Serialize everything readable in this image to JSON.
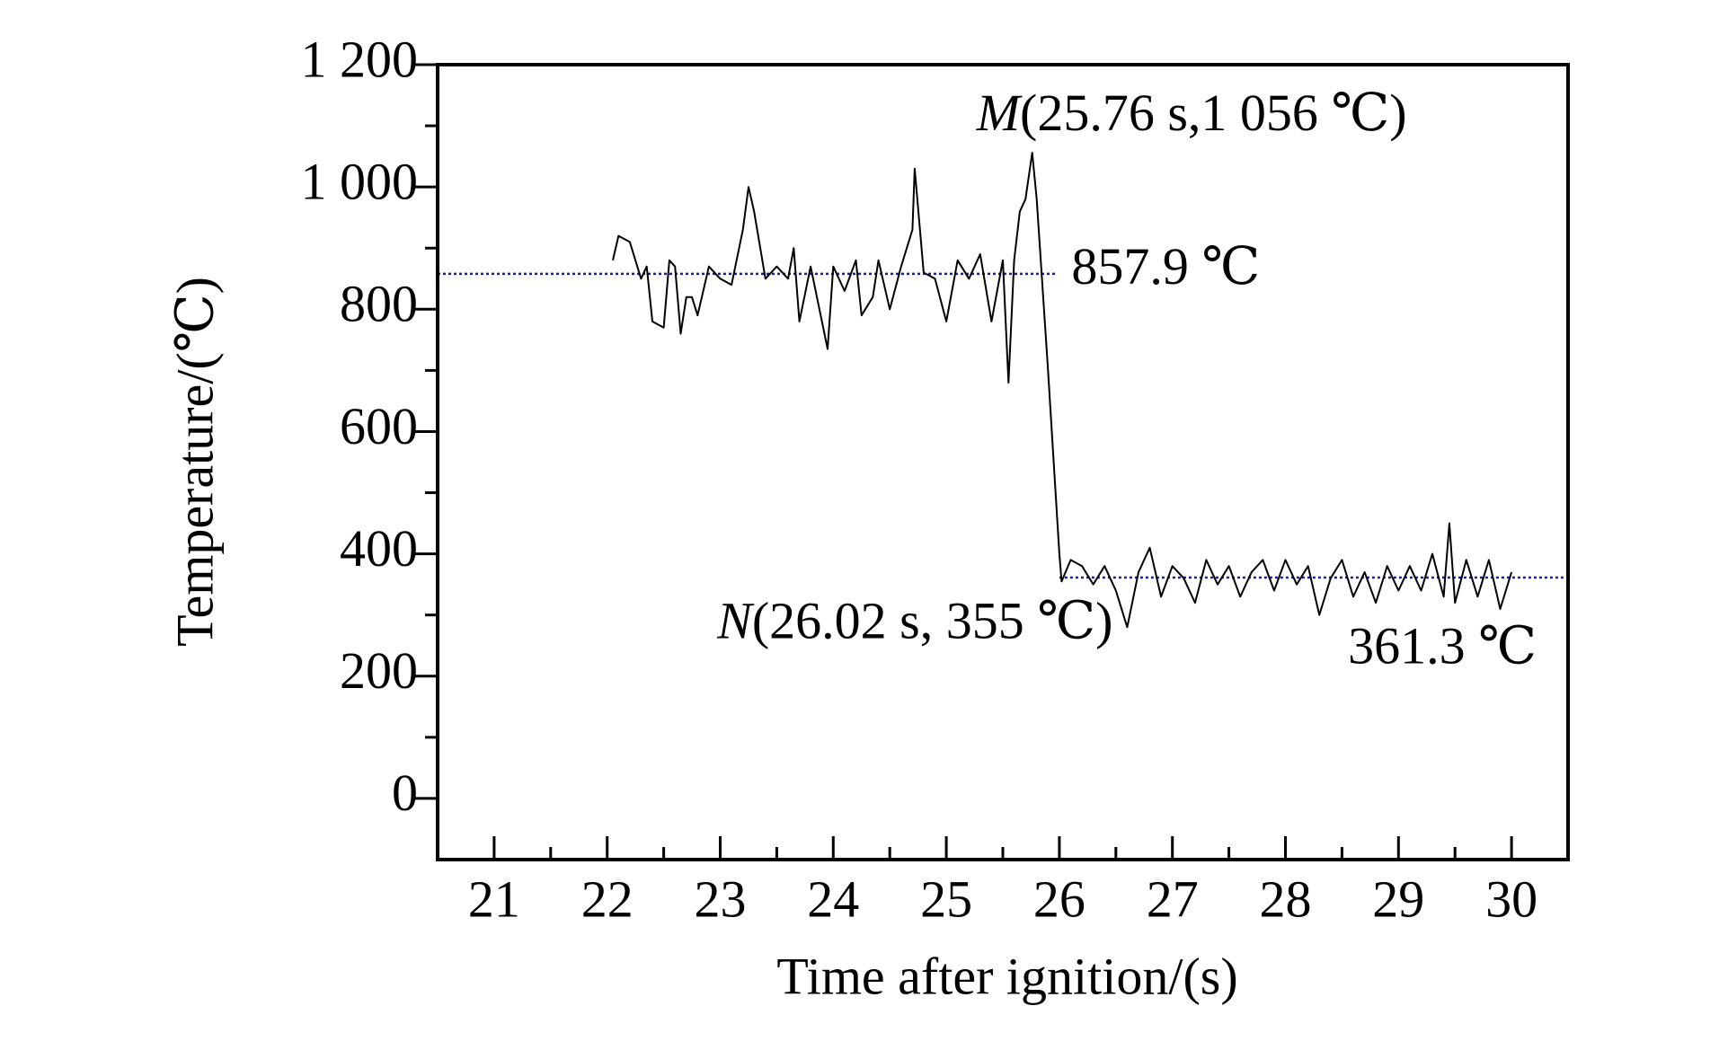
{
  "chart_data": {
    "type": "line",
    "xlabel": "Time after ignition/(s)",
    "ylabel": "Temperature/(℃)",
    "xlim": [
      20.5,
      30.5
    ],
    "xticks": [
      21,
      22,
      23,
      24,
      25,
      26,
      27,
      28,
      29,
      30
    ],
    "ylim": [
      -100,
      1200
    ],
    "yticks": [
      0,
      200,
      400,
      600,
      800,
      {
        "value": 1000,
        "label": "1 000"
      },
      {
        "value": 1200,
        "label": "1 200"
      }
    ],
    "series": [
      {
        "color": "#000000",
        "x": [
          22.05,
          22.1,
          22.2,
          22.3,
          22.35,
          22.4,
          22.5,
          22.55,
          22.6,
          22.65,
          22.7,
          22.75,
          22.8,
          22.9,
          23.0,
          23.1,
          23.2,
          23.25,
          23.3,
          23.4,
          23.5,
          23.6,
          23.65,
          23.7,
          23.8,
          23.9,
          23.95,
          24.0,
          24.1,
          24.2,
          24.25,
          24.35,
          24.4,
          24.5,
          24.6,
          24.7,
          24.72,
          24.8,
          24.9,
          25.0,
          25.1,
          25.2,
          25.3,
          25.4,
          25.5,
          25.55,
          25.6,
          25.65,
          25.7,
          25.76,
          25.8,
          25.9,
          26.0,
          26.02,
          26.1,
          26.2,
          26.3,
          26.4,
          26.5,
          26.6,
          26.7,
          26.8,
          26.9,
          27.0,
          27.1,
          27.2,
          27.3,
          27.4,
          27.5,
          27.6,
          27.7,
          27.8,
          27.9,
          28.0,
          28.1,
          28.2,
          28.3,
          28.4,
          28.5,
          28.6,
          28.7,
          28.8,
          28.9,
          29.0,
          29.1,
          29.2,
          29.3,
          29.4,
          29.45,
          29.5,
          29.6,
          29.7,
          29.8,
          29.9,
          30.0
        ],
        "values": [
          880,
          920,
          910,
          850,
          870,
          780,
          770,
          880,
          870,
          760,
          820,
          820,
          790,
          870,
          850,
          840,
          930,
          1000,
          960,
          850,
          870,
          850,
          900,
          780,
          870,
          780,
          735,
          870,
          830,
          880,
          790,
          820,
          880,
          800,
          870,
          930,
          1030,
          860,
          850,
          780,
          880,
          850,
          890,
          780,
          880,
          680,
          880,
          960,
          980,
          1056,
          980,
          700,
          400,
          355,
          390,
          380,
          350,
          380,
          340,
          280,
          370,
          410,
          330,
          380,
          360,
          320,
          390,
          350,
          380,
          330,
          370,
          390,
          340,
          390,
          350,
          380,
          300,
          360,
          390,
          330,
          370,
          320,
          380,
          340,
          380,
          340,
          400,
          330,
          450,
          320,
          390,
          330,
          390,
          310,
          370
        ]
      }
    ],
    "reference_lines": [
      {
        "value": 857.9,
        "label": "857.9 ℃",
        "x": [
          20.5,
          25.98
        ],
        "color": "#1a1aa8"
      },
      {
        "value": 361.3,
        "label": "361.3 ℃",
        "x": [
          26.0,
          30.5
        ],
        "color": "#1a1aa8"
      }
    ],
    "annotations": [
      {
        "point": "M",
        "text": "(25.76 s,1 056 ℃)",
        "x": 25.76,
        "y": 1056
      },
      {
        "point": "N",
        "text": "(26.02 s, 355 ℃)",
        "x": 26.02,
        "y": 355
      }
    ]
  }
}
